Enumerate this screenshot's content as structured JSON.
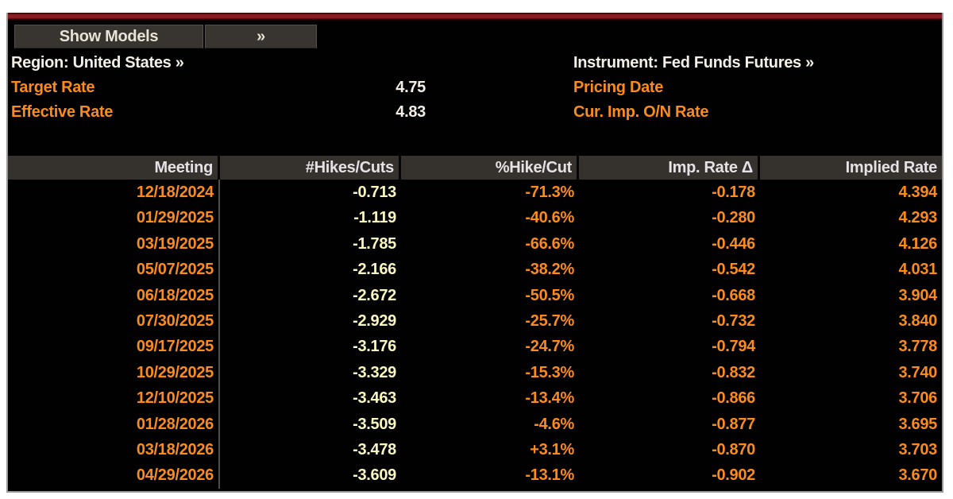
{
  "colors": {
    "accent_orange": "#fb8b1e",
    "pale_yellow": "#faf7c0",
    "white_text": "#f4f0e7",
    "header_bg": "#35312d",
    "red_bar": "#8e1b22"
  },
  "toolbar": {
    "show_models_label": "Show Models",
    "expand_label": "»"
  },
  "info": {
    "region": "Region: United States »",
    "instrument": "Instrument: Fed Funds Futures »",
    "left_rows": [
      {
        "label": "Target Rate",
        "value": "4.75"
      },
      {
        "label": "Effective Rate",
        "value": "4.83"
      }
    ],
    "right_rows": [
      {
        "label": "Pricing Date",
        "value": ""
      },
      {
        "label": "Cur. Imp. O/N Rate",
        "value": ""
      }
    ]
  },
  "table": {
    "columns": [
      "Meeting",
      "#Hikes/Cuts",
      "%Hike/Cut",
      "Imp. Rate Δ",
      "Implied Rate"
    ],
    "column_styles": [
      "o",
      "y",
      "o",
      "o",
      "o"
    ],
    "rows": [
      [
        "12/18/2024",
        "-0.713",
        "-71.3%",
        "-0.178",
        "4.394"
      ],
      [
        "01/29/2025",
        "-1.119",
        "-40.6%",
        "-0.280",
        "4.293"
      ],
      [
        "03/19/2025",
        "-1.785",
        "-66.6%",
        "-0.446",
        "4.126"
      ],
      [
        "05/07/2025",
        "-2.166",
        "-38.2%",
        "-0.542",
        "4.031"
      ],
      [
        "06/18/2025",
        "-2.672",
        "-50.5%",
        "-0.668",
        "3.904"
      ],
      [
        "07/30/2025",
        "-2.929",
        "-25.7%",
        "-0.732",
        "3.840"
      ],
      [
        "09/17/2025",
        "-3.176",
        "-24.7%",
        "-0.794",
        "3.778"
      ],
      [
        "10/29/2025",
        "-3.329",
        "-15.3%",
        "-0.832",
        "3.740"
      ],
      [
        "12/10/2025",
        "-3.463",
        "-13.4%",
        "-0.866",
        "3.706"
      ],
      [
        "01/28/2026",
        "-3.509",
        "-4.6%",
        "-0.877",
        "3.695"
      ],
      [
        "03/18/2026",
        "-3.478",
        "+3.1%",
        "-0.870",
        "3.703"
      ],
      [
        "04/29/2026",
        "-3.609",
        "-13.1%",
        "-0.902",
        "3.670"
      ]
    ]
  }
}
